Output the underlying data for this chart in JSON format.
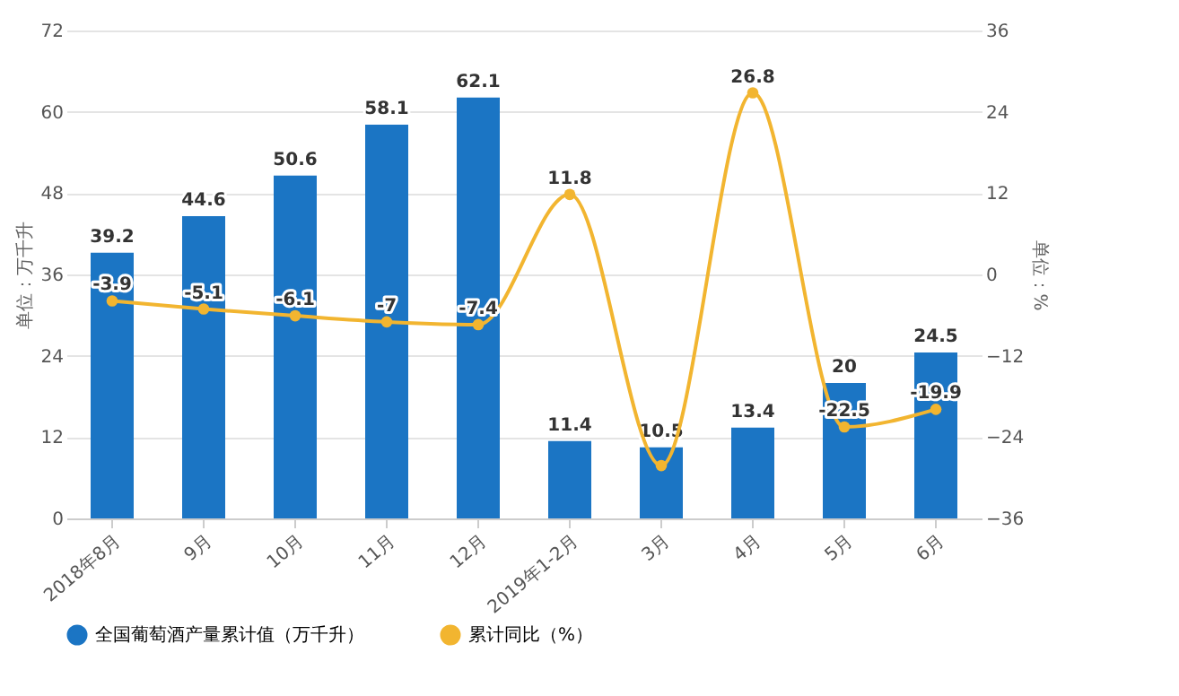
{
  "chart_data": {
    "type": "bar",
    "categories": [
      "2018年8月",
      "9月",
      "10月",
      "11月",
      "12月",
      "2019年1-2月",
      "3月",
      "4月",
      "5月",
      "6月"
    ],
    "ylabel": "单位：万千升",
    "y2label": "单位：%",
    "ylim": [
      0,
      72
    ],
    "yticks": [
      0,
      12,
      24,
      36,
      48,
      60,
      72
    ],
    "y2lim": [
      -36,
      36
    ],
    "y2ticks": [
      -36,
      -24,
      -12,
      0,
      12,
      24,
      36
    ],
    "grid": "y",
    "legend": "bottom",
    "series": [
      {
        "name": "全国葡萄酒产量累计值（万千升）",
        "color": "#1b75c4",
        "values": [
          39.2,
          44.6,
          50.6,
          58.1,
          62.1,
          11.4,
          10.5,
          13.4,
          20,
          24.5
        ],
        "value_labels": [
          "39.2",
          "44.6",
          "50.6",
          "58.1",
          "62.1",
          "11.4",
          "10.5",
          "13.4",
          "20",
          "24.5"
        ]
      },
      {
        "name": "累计同比（%）",
        "type": "line",
        "axis": "y2",
        "color": "#f2b530",
        "marker": "circle",
        "values": [
          -3.9,
          -5.1,
          -6.1,
          -7,
          -7.4,
          11.8,
          -28.2,
          26.8,
          -22.5,
          -19.9
        ],
        "value_labels": [
          "-3.9",
          "-5.1",
          "-6.1",
          "-7",
          "-7.4",
          "11.8",
          null,
          "26.8",
          "-22.5",
          "-19.9"
        ]
      }
    ]
  }
}
